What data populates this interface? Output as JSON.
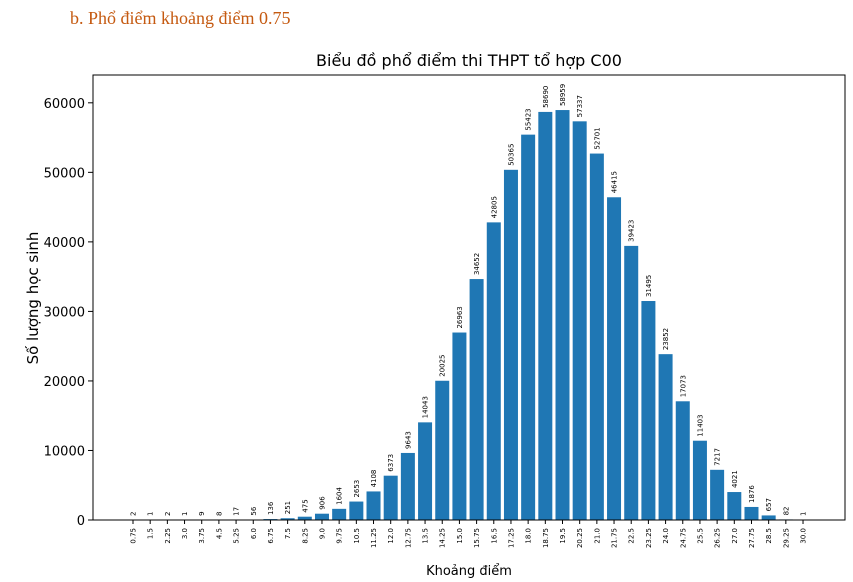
{
  "heading": "b.  Phổ điểm khoảng điểm 0.75",
  "chart_data": {
    "type": "bar",
    "title": "Biểu đồ phổ điểm thi THPT tổ hợp C00",
    "x_label": "Khoảng điểm",
    "y_label": "Số lượng học sinh",
    "categories": [
      "0.75",
      "1.5",
      "2.25",
      "3.0",
      "3.75",
      "4.5",
      "5.25",
      "6.0",
      "6.75",
      "7.5",
      "8.25",
      "9.0",
      "9.75",
      "10.5",
      "11.25",
      "12.0",
      "12.75",
      "13.5",
      "14.25",
      "15.0",
      "15.75",
      "16.5",
      "17.25",
      "18.0",
      "18.75",
      "19.5",
      "20.25",
      "21.0",
      "21.75",
      "22.5",
      "23.25",
      "24.0",
      "24.75",
      "25.5",
      "26.25",
      "27.0",
      "27.75",
      "28.5",
      "29.25",
      "30.0"
    ],
    "values": [
      2,
      1,
      2,
      1,
      9,
      8,
      17,
      56,
      136,
      251,
      475,
      906,
      1604,
      2653,
      4108,
      6373,
      9643,
      14043,
      20025,
      26963,
      34652,
      42805,
      50365,
      55423,
      58690,
      58959,
      57337,
      52701,
      46415,
      39423,
      31495,
      23852,
      17073,
      11403,
      7217,
      4021,
      1876,
      657,
      82,
      1
    ],
    "color": "#1f77b4",
    "ylim": [
      0,
      64000
    ],
    "yticks": [
      0,
      10000,
      20000,
      30000,
      40000,
      50000,
      60000
    ]
  }
}
